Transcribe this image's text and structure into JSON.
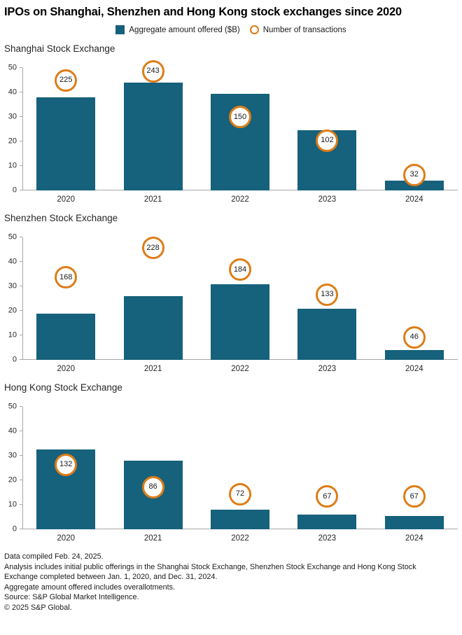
{
  "title": "IPOs on Shanghai, Shenzhen and Hong Kong stock exchanges since 2020",
  "legend": {
    "bar_label": "Aggregate amount offered ($B)",
    "circle_label": "Number of transactions"
  },
  "colors": {
    "bar": "#16617b",
    "circle_ring": "#dd7d17",
    "axis": "#a8a8a8"
  },
  "axis": {
    "ticks": [
      0,
      10,
      20,
      30,
      40,
      50
    ],
    "max": 50,
    "transactions_per_unit": 5
  },
  "chart_data": [
    {
      "type": "bar",
      "title": "Shanghai Stock Exchange",
      "categories": [
        "2020",
        "2021",
        "2022",
        "2023",
        "2024"
      ],
      "series": [
        {
          "name": "Aggregate amount offered ($B)",
          "values": [
            38,
            44,
            39.5,
            24.5,
            4
          ]
        },
        {
          "name": "Number of transactions",
          "values": [
            225,
            243,
            150,
            102,
            32
          ]
        }
      ],
      "ylim": [
        0,
        50
      ],
      "grid": false,
      "legend_position": "top"
    },
    {
      "type": "bar",
      "title": "Shenzhen Stock Exchange",
      "categories": [
        "2020",
        "2021",
        "2022",
        "2023",
        "2024"
      ],
      "series": [
        {
          "name": "Aggregate amount offered ($B)",
          "values": [
            19,
            26,
            31,
            21,
            4
          ]
        },
        {
          "name": "Number of transactions",
          "values": [
            168,
            228,
            184,
            133,
            46
          ]
        }
      ],
      "ylim": [
        0,
        50
      ],
      "grid": false,
      "legend_position": "top"
    },
    {
      "type": "bar",
      "title": "Hong Kong Stock Exchange",
      "categories": [
        "2020",
        "2021",
        "2022",
        "2023",
        "2024"
      ],
      "series": [
        {
          "name": "Aggregate amount offered ($B)",
          "values": [
            32.5,
            28,
            8,
            6,
            5.5
          ]
        },
        {
          "name": "Number of transactions",
          "values": [
            132,
            86,
            72,
            67,
            67
          ]
        }
      ],
      "ylim": [
        0,
        50
      ],
      "grid": false,
      "legend_position": "top"
    }
  ],
  "footnotes": [
    "Data compiled Feb. 24, 2025.",
    "Analysis includes initial public offerings in the Shanghai Stock Exchange, Shenzhen Stock Exchange and Hong Kong Stock",
    "Exchange completed between Jan. 1, 2020, and Dec. 31, 2024.",
    "Aggregate amount offered includes overallotments.",
    "Source: S&P Global Market Intelligence.",
    "© 2025 S&P Global."
  ]
}
